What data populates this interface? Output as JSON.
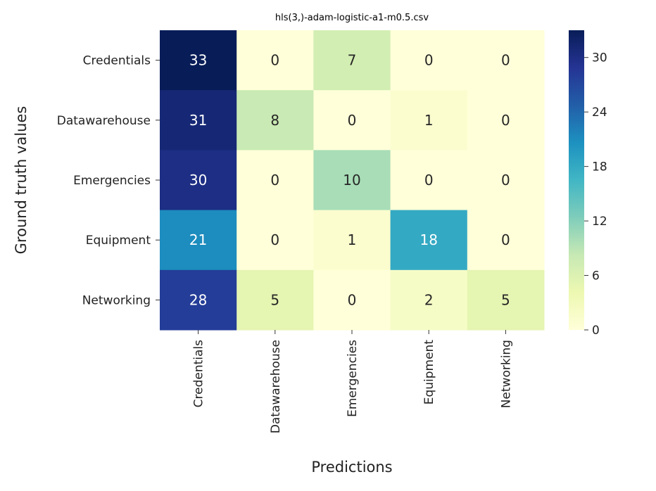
{
  "chart_data": {
    "type": "heatmap",
    "title": "hls(3,)-adam-logistic-a1-m0.5.csv",
    "xlabel": "Predictions",
    "ylabel": "Ground truth values",
    "x_categories": [
      "Credentials",
      "Datawarehouse",
      "Emergencies",
      "Equipment",
      "Networking"
    ],
    "y_categories": [
      "Credentials",
      "Datawarehouse",
      "Emergencies",
      "Equipment",
      "Networking"
    ],
    "values": [
      [
        33,
        0,
        7,
        0,
        0
      ],
      [
        31,
        8,
        0,
        1,
        0
      ],
      [
        30,
        0,
        10,
        0,
        0
      ],
      [
        21,
        0,
        1,
        18,
        0
      ],
      [
        28,
        5,
        0,
        2,
        5
      ]
    ],
    "colorbar": {
      "range": [
        0,
        33
      ],
      "ticks": [
        "0",
        "6",
        "12",
        "18",
        "24",
        "30"
      ],
      "colormap": "YlGnBu"
    },
    "grid": false
  }
}
